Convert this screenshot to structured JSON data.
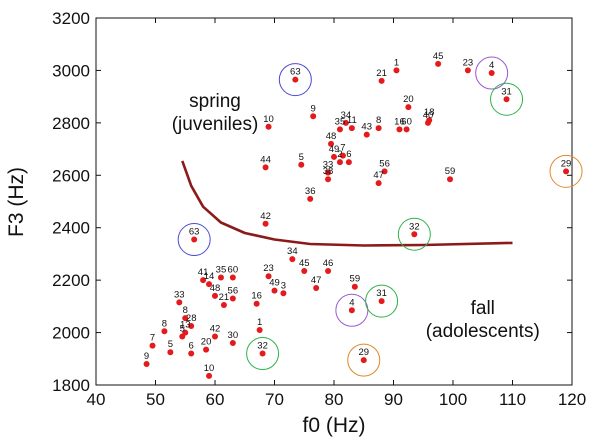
{
  "chart_data": {
    "type": "scatter",
    "xlabel": "f0 (Hz)",
    "ylabel": "F3 (Hz)",
    "xlim": [
      40,
      120
    ],
    "ylim": [
      1800,
      3200
    ],
    "xticks": [
      40,
      50,
      60,
      70,
      80,
      90,
      100,
      110,
      120
    ],
    "yticks": [
      1800,
      2000,
      2200,
      2400,
      2600,
      2800,
      3000,
      3200
    ],
    "point_color": "#e41a1c",
    "boundary_color": "#8b1a1a",
    "grid": false,
    "legend": "none",
    "annotations": [
      {
        "text": [
          "spring",
          "(juveniles)"
        ],
        "x": 60,
        "y": 2860
      },
      {
        "text": [
          "fall",
          "(adolescents)"
        ],
        "x": 105,
        "y": 2070
      }
    ],
    "boundary_curve": [
      {
        "x": 54.5,
        "y": 2655
      },
      {
        "x": 56,
        "y": 2560
      },
      {
        "x": 58,
        "y": 2480
      },
      {
        "x": 61,
        "y": 2420
      },
      {
        "x": 65,
        "y": 2380
      },
      {
        "x": 70,
        "y": 2355
      },
      {
        "x": 76,
        "y": 2338
      },
      {
        "x": 85,
        "y": 2332
      },
      {
        "x": 95,
        "y": 2334
      },
      {
        "x": 110,
        "y": 2342
      }
    ],
    "spring_points": [
      {
        "label": "45",
        "x": 97.5,
        "y": 3025
      },
      {
        "label": "23",
        "x": 102.5,
        "y": 3000
      },
      {
        "label": "4",
        "x": 106.5,
        "y": 2990
      },
      {
        "label": "31",
        "x": 109,
        "y": 2890
      },
      {
        "label": "29",
        "x": 119,
        "y": 2615
      },
      {
        "label": "1",
        "x": 90.5,
        "y": 3000
      },
      {
        "label": "21",
        "x": 88,
        "y": 2960
      },
      {
        "label": "63",
        "x": 73.5,
        "y": 2965
      },
      {
        "label": "20",
        "x": 92.5,
        "y": 2860
      },
      {
        "label": "18",
        "x": 96,
        "y": 2810
      },
      {
        "label": "40",
        "x": 95.8,
        "y": 2800
      },
      {
        "label": "16",
        "x": 91,
        "y": 2775
      },
      {
        "label": "60",
        "x": 92.2,
        "y": 2775
      },
      {
        "label": "8",
        "x": 87.5,
        "y": 2780
      },
      {
        "label": "43",
        "x": 85.5,
        "y": 2755
      },
      {
        "label": "34",
        "x": 82,
        "y": 2800
      },
      {
        "label": "35",
        "x": 81,
        "y": 2775
      },
      {
        "label": "11",
        "x": 83,
        "y": 2780
      },
      {
        "label": "48",
        "x": 79.5,
        "y": 2720
      },
      {
        "label": "9",
        "x": 76.5,
        "y": 2825
      },
      {
        "label": "10",
        "x": 69,
        "y": 2785
      },
      {
        "label": "49",
        "x": 80,
        "y": 2670
      },
      {
        "label": "7",
        "x": 81.5,
        "y": 2675
      },
      {
        "label": "6",
        "x": 82.5,
        "y": 2650
      },
      {
        "label": "2",
        "x": 81,
        "y": 2650
      },
      {
        "label": "33",
        "x": 79,
        "y": 2610
      },
      {
        "label": "38",
        "x": 79,
        "y": 2585
      },
      {
        "label": "5",
        "x": 74.5,
        "y": 2640
      },
      {
        "label": "44",
        "x": 68.5,
        "y": 2630
      },
      {
        "label": "56",
        "x": 88.5,
        "y": 2615
      },
      {
        "label": "47",
        "x": 87.5,
        "y": 2570
      },
      {
        "label": "59",
        "x": 99.5,
        "y": 2585
      },
      {
        "label": "36",
        "x": 76,
        "y": 2510
      },
      {
        "label": "42",
        "x": 68.5,
        "y": 2415
      },
      {
        "label": "32",
        "x": 93.5,
        "y": 2375
      },
      {
        "label": "63",
        "x": 56.5,
        "y": 2355
      }
    ],
    "fall_points": [
      {
        "label": "34",
        "x": 73,
        "y": 2280
      },
      {
        "label": "45",
        "x": 75,
        "y": 2235
      },
      {
        "label": "46",
        "x": 79,
        "y": 2235
      },
      {
        "label": "23",
        "x": 69,
        "y": 2215
      },
      {
        "label": "47",
        "x": 77,
        "y": 2170
      },
      {
        "label": "49",
        "x": 70,
        "y": 2160
      },
      {
        "label": "3",
        "x": 71.5,
        "y": 2150
      },
      {
        "label": "59",
        "x": 83.5,
        "y": 2175
      },
      {
        "label": "31",
        "x": 88,
        "y": 2120
      },
      {
        "label": "4",
        "x": 83,
        "y": 2085
      },
      {
        "label": "41",
        "x": 58,
        "y": 2200
      },
      {
        "label": "14",
        "x": 59,
        "y": 2185
      },
      {
        "label": "35",
        "x": 61,
        "y": 2210
      },
      {
        "label": "60",
        "x": 63,
        "y": 2210
      },
      {
        "label": "48",
        "x": 60,
        "y": 2140
      },
      {
        "label": "56",
        "x": 63,
        "y": 2130
      },
      {
        "label": "21",
        "x": 61.5,
        "y": 2105
      },
      {
        "label": "16",
        "x": 67,
        "y": 2110
      },
      {
        "label": "33",
        "x": 54,
        "y": 2115
      },
      {
        "label": "8",
        "x": 55,
        "y": 2055
      },
      {
        "label": "28",
        "x": 56,
        "y": 2025
      },
      {
        "label": "13",
        "x": 55,
        "y": 2000
      },
      {
        "label": "5",
        "x": 54.5,
        "y": 1985
      },
      {
        "label": "8",
        "x": 51.5,
        "y": 2005
      },
      {
        "label": "42",
        "x": 60,
        "y": 1985
      },
      {
        "label": "1",
        "x": 67.5,
        "y": 2010
      },
      {
        "label": "30",
        "x": 63,
        "y": 1960
      },
      {
        "label": "20",
        "x": 58.5,
        "y": 1935
      },
      {
        "label": "6",
        "x": 56,
        "y": 1920
      },
      {
        "label": "5",
        "x": 52.5,
        "y": 1925
      },
      {
        "label": "7",
        "x": 49.5,
        "y": 1950
      },
      {
        "label": "9",
        "x": 48.5,
        "y": 1880
      },
      {
        "label": "10",
        "x": 59,
        "y": 1835
      },
      {
        "label": "32",
        "x": 68,
        "y": 1920
      },
      {
        "label": "29",
        "x": 85,
        "y": 1895
      }
    ],
    "circled": [
      {
        "x": 106.5,
        "y": 2990,
        "color": "#9b59d0"
      },
      {
        "x": 109,
        "y": 2890,
        "color": "#2fb14a"
      },
      {
        "x": 119,
        "y": 2615,
        "color": "#e08a2a"
      },
      {
        "x": 73.5,
        "y": 2965,
        "color": "#4a4ad8"
      },
      {
        "x": 93.5,
        "y": 2375,
        "color": "#2fb14a"
      },
      {
        "x": 56.5,
        "y": 2355,
        "color": "#4a4ad8"
      },
      {
        "x": 83,
        "y": 2085,
        "color": "#9b59d0"
      },
      {
        "x": 88,
        "y": 2120,
        "color": "#2fb14a"
      },
      {
        "x": 68,
        "y": 1920,
        "color": "#2fb14a"
      },
      {
        "x": 85,
        "y": 1895,
        "color": "#e08a2a"
      }
    ]
  }
}
